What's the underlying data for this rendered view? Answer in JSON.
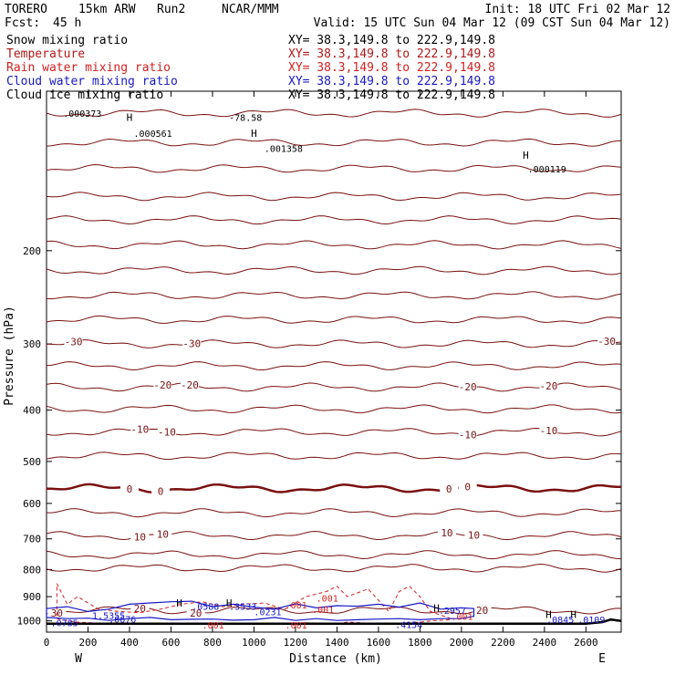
{
  "header": {
    "model": "TORERO",
    "resolution": "15km ARW",
    "run": "Run2",
    "org": "NCAR/MMM",
    "init": "Init: 18 UTC Fri 02 Mar 12",
    "fcst_label": "Fcst:",
    "fcst_value": "45 h",
    "valid": "Valid: 15 UTC Sun 04 Mar 12 (09 CST Sun 04 Mar 12)"
  },
  "legend": [
    {
      "name": "Snow mixing ratio",
      "color": "#000000",
      "xy": "XY=  38.3,149.8 to 222.9,149.8"
    },
    {
      "name": "Temperature",
      "color": "#b01818",
      "xy": "XY=  38.3,149.8 to 222.9,149.8"
    },
    {
      "name": "Rain water mixing ratio",
      "color": "#d42020",
      "xy": "XY=  38.3,149.8 to 222.9,149.8"
    },
    {
      "name": "Cloud water mixing ratio",
      "color": "#1818c8",
      "xy": "XY=  38.3,149.8 to 222.9,149.8"
    },
    {
      "name": "Cloud ice mixing ratio",
      "color": "#000000",
      "xy": "XY=  38.3,149.8 to 222.9,149.8"
    }
  ],
  "colors": {
    "temperature": "#7a1010",
    "zero_isotherm": "#7a1010",
    "rain": "#d42020",
    "cloud": "#1818c8",
    "ground": "#000000"
  },
  "chart_data": {
    "type": "line",
    "title": "",
    "xlabel": "Distance (km)",
    "ylabel": "Pressure (hPa)",
    "xlim": [
      0,
      2770
    ],
    "ylim": [
      1050,
      100
    ],
    "x_ticks": [
      0,
      200,
      400,
      600,
      800,
      1000,
      1200,
      1400,
      1600,
      1800,
      2000,
      2200,
      2400,
      2600
    ],
    "y_ticks": [
      200,
      300,
      400,
      500,
      600,
      700,
      800,
      900,
      1000
    ],
    "y_log": true,
    "west_label": "W",
    "east_label": "E",
    "temperature_isotherms": [
      {
        "p": 110,
        "w": 1
      },
      {
        "p": 125,
        "w": 1
      },
      {
        "p": 140,
        "w": 1
      },
      {
        "p": 158,
        "w": 1
      },
      {
        "p": 175,
        "w": 1
      },
      {
        "p": 195,
        "w": 1
      },
      {
        "p": 218,
        "w": 1
      },
      {
        "p": 243,
        "w": 1
      },
      {
        "p": 270,
        "w": 1
      },
      {
        "p": 300,
        "w": 1,
        "labels": [
          {
            "x": 130,
            "t": "-30"
          },
          {
            "x": 700,
            "t": "-30"
          },
          {
            "x": 2700,
            "t": "-30"
          }
        ]
      },
      {
        "p": 330,
        "w": 1
      },
      {
        "p": 362,
        "w": 1,
        "labels": [
          {
            "x": 560,
            "t": "-20"
          },
          {
            "x": 690,
            "t": "-20"
          },
          {
            "x": 2030,
            "t": "-20"
          },
          {
            "x": 2420,
            "t": "-20"
          }
        ]
      },
      {
        "p": 398,
        "w": 1
      },
      {
        "p": 440,
        "w": 1,
        "labels": [
          {
            "x": 450,
            "t": "-10"
          },
          {
            "x": 580,
            "t": "-10"
          },
          {
            "x": 2030,
            "t": "-10"
          },
          {
            "x": 2420,
            "t": "-10"
          }
        ]
      },
      {
        "p": 488,
        "w": 1
      },
      {
        "p": 562,
        "w": 2.5,
        "labels": [
          {
            "x": 400,
            "t": "0"
          },
          {
            "x": 550,
            "t": "0"
          },
          {
            "x": 1940,
            "t": "0"
          },
          {
            "x": 2030,
            "t": "0"
          }
        ]
      },
      {
        "p": 625,
        "w": 1
      },
      {
        "p": 690,
        "w": 1,
        "labels": [
          {
            "x": 450,
            "t": "10"
          },
          {
            "x": 560,
            "t": "10"
          },
          {
            "x": 1930,
            "t": "10"
          },
          {
            "x": 2060,
            "t": "10"
          }
        ]
      },
      {
        "p": 750,
        "w": 1
      },
      {
        "p": 795,
        "w": 1
      },
      {
        "p": 955,
        "w": 1,
        "labels": [
          {
            "x": 50,
            "t": "30"
          },
          {
            "x": 450,
            "t": "20"
          },
          {
            "x": 720,
            "t": "20"
          },
          {
            "x": 2100,
            "t": "20"
          }
        ]
      }
    ],
    "maxima_labels": [
      {
        "x": 80,
        "p": 110,
        "t": ".000373"
      },
      {
        "x": 420,
        "p": 120,
        "t": ".000561"
      },
      {
        "x": 880,
        "p": 112,
        "t": "-78.58"
      },
      {
        "x": 1050,
        "p": 128,
        "t": ".001358"
      },
      {
        "x": 2320,
        "p": 140,
        "t": ".000119"
      },
      {
        "x": 700,
        "p": 938,
        "t": ".0588"
      },
      {
        "x": 880,
        "p": 938,
        "t": ".3533"
      },
      {
        "x": 1150,
        "p": 933,
        "t": ".001"
      },
      {
        "x": 1300,
        "p": 905,
        "t": ".001"
      },
      {
        "x": 1280,
        "p": 950,
        "t": ".001"
      },
      {
        "x": 1000,
        "p": 960,
        "t": ".0231"
      },
      {
        "x": 220,
        "p": 975,
        "t": "1.5355"
      },
      {
        "x": 300,
        "p": 992,
        "t": ".0676"
      },
      {
        "x": 20,
        "p": 1008,
        "t": ".0785"
      },
      {
        "x": 750,
        "p": 1018,
        "t": ".001"
      },
      {
        "x": 1150,
        "p": 1018,
        "t": ".001"
      },
      {
        "x": 1680,
        "p": 1016,
        "t": ".4154"
      },
      {
        "x": 1890,
        "p": 955,
        "t": ".2957"
      },
      {
        "x": 1950,
        "p": 980,
        "t": ".001"
      },
      {
        "x": 2410,
        "p": 993,
        "t": ".0845"
      },
      {
        "x": 2560,
        "p": 993,
        "t": ".0109"
      }
    ],
    "h_markers": [
      {
        "x": 400,
        "p": 112
      },
      {
        "x": 1000,
        "p": 120
      },
      {
        "x": 2310,
        "p": 132
      },
      {
        "x": 640,
        "p": 924
      },
      {
        "x": 880,
        "p": 924
      },
      {
        "x": 1880,
        "p": 945
      },
      {
        "x": 2420,
        "p": 972
      },
      {
        "x": 2540,
        "p": 972
      }
    ],
    "ground_pressure": [
      1012,
      1012,
      1012,
      1012,
      1012,
      1012,
      1012,
      1012,
      1012,
      1012,
      1012,
      1012,
      1012,
      1012,
      1005,
      994,
      1000
    ],
    "ground_x": [
      0,
      200,
      400,
      600,
      800,
      1000,
      1200,
      1400,
      1600,
      1800,
      2000,
      2200,
      2400,
      2600,
      2680,
      2720,
      2770
    ],
    "cloud_water_contour": {
      "x": [
        0,
        100,
        200,
        300,
        400,
        500,
        600,
        700,
        800,
        900,
        1000,
        1100,
        1200,
        1300,
        1400,
        1500,
        1600,
        1700,
        1800,
        1900,
        2000,
        2060
      ],
      "top": [
        948,
        940,
        960,
        950,
        930,
        925,
        920,
        918,
        940,
        930,
        942,
        950,
        928,
        945,
        936,
        938,
        930,
        942,
        925,
        950,
        945,
        948
      ],
      "bottom": [
        985,
        990,
        988,
        998,
        990,
        985,
        995,
        993,
        992,
        997,
        995,
        985,
        998,
        990,
        998,
        995,
        992,
        990,
        995,
        990,
        990,
        980
      ]
    },
    "rain_water_contour": {
      "x": [
        50,
        100,
        150,
        250,
        350,
        450,
        550,
        650,
        750,
        850,
        950,
        1050,
        1150,
        1250,
        1350,
        1400,
        1450,
        1550,
        1650,
        1700,
        1750,
        1800,
        1850,
        1950
      ],
      "top": [
        850,
        930,
        900,
        950,
        960,
        965,
        950,
        930,
        920,
        940,
        930,
        925,
        950,
        900,
        880,
        860,
        900,
        870,
        960,
        880,
        860,
        900,
        960,
        990
      ],
      "bottom": [
        990,
        1000,
        1005,
        1010,
        1008,
        1010,
        1012,
        1010,
        1012,
        1010,
        1012,
        1010,
        1012,
        1008,
        1010,
        1012,
        1005,
        1010,
        1012,
        1010,
        1008,
        1005,
        1000,
        995
      ]
    }
  }
}
